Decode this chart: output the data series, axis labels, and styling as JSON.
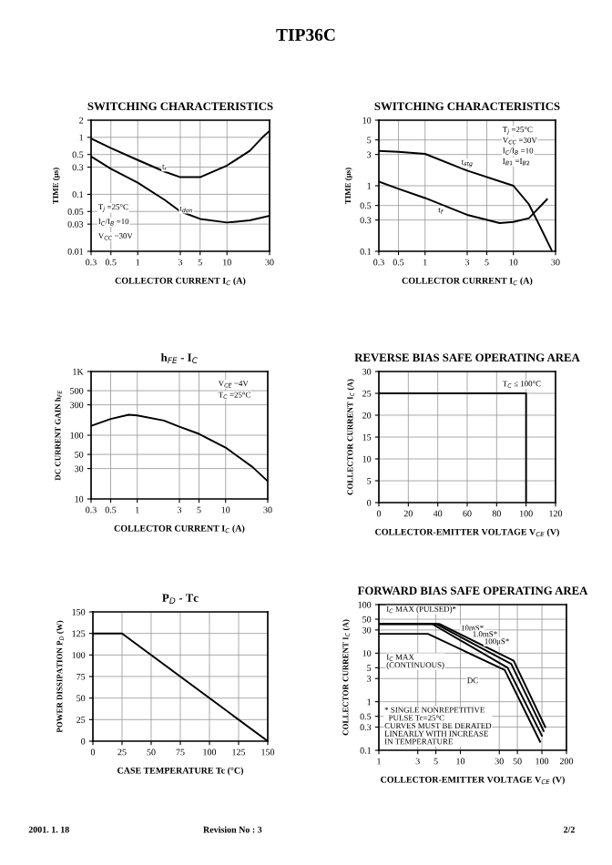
{
  "chart_data": [
    {
      "type": "other",
      "title": "TIP36C",
      "annotations": [
        "2001. 1. 18",
        "Revision No : 3",
        "2/2"
      ]
    },
    {
      "type": "line",
      "title": "SWITCHING CHARACTERISTICS",
      "xlabel": "COLLECTOR CURRENT I$_{C}$ (A)",
      "ylabel": "TIME (μs)",
      "log": "xy",
      "grid": true,
      "xlim": [
        0.3,
        30
      ],
      "ylim": [
        0.01,
        2
      ],
      "xticks": [
        0.3,
        0.5,
        1,
        3,
        5,
        10,
        30
      ],
      "yticks": [
        0.01,
        0.03,
        0.05,
        0.1,
        0.3,
        0.5,
        1,
        2
      ],
      "series": [
        {
          "color": "#000000",
          "x": [
            0.3,
            0.5,
            1,
            2,
            3,
            5,
            10,
            18,
            25,
            30
          ],
          "values": [
            0.95,
            0.65,
            0.4,
            0.25,
            0.2,
            0.2,
            0.32,
            0.58,
            1.0,
            1.3
          ]
        },
        {
          "color": "#000000",
          "x": [
            0.3,
            0.5,
            1,
            2,
            3,
            5,
            10,
            18,
            30
          ],
          "values": [
            0.46,
            0.28,
            0.16,
            0.08,
            0.05,
            0.037,
            0.032,
            0.035,
            0.042
          ]
        }
      ],
      "annotations": [
        {
          "text": "t$_{r}$",
          "x": 2,
          "y": 0.3
        },
        {
          "text": "t$_{don}$",
          "x": 3.5,
          "y": 0.055
        },
        "T$_{j}$ =25°C",
        "I$_{C}$/I$_{B}$ =10",
        "V$_{CC}$ =30V"
      ]
    },
    {
      "type": "line",
      "title": "SWITCHING CHARACTERISTICS",
      "xlabel": "COLLECTOR CURRENT I$_{C}$ (A)",
      "ylabel": "TIME (μs)",
      "log": "xy",
      "grid": true,
      "xlim": [
        0.3,
        30
      ],
      "ylim": [
        0.1,
        10
      ],
      "xticks": [
        0.3,
        0.5,
        1,
        3,
        5,
        10,
        30
      ],
      "yticks": [
        0.1,
        0.3,
        0.5,
        1,
        3,
        5,
        10
      ],
      "series": [
        {
          "color": "#000000",
          "x": [
            0.3,
            0.5,
            1,
            3,
            10,
            15,
            20,
            27
          ],
          "values": [
            3.4,
            3.3,
            3.06,
            1.7,
            1.0,
            0.52,
            0.24,
            0.105
          ]
        },
        {
          "color": "#000000",
          "x": [
            0.3,
            0.5,
            1,
            3,
            7,
            10,
            15,
            24
          ],
          "values": [
            1.16,
            0.9,
            0.65,
            0.36,
            0.27,
            0.28,
            0.32,
            0.62
          ]
        }
      ],
      "annotations": [
        {
          "text": "t$_{stg}$",
          "x": 3,
          "y": 2.2
        },
        {
          "text": "t$_{f}$",
          "x": 1.5,
          "y": 0.42
        },
        "T$_{j}$ =25°C",
        "V$_{CC}$ =30V",
        "I$_{C}$/I$_{B}$ =10",
        "I$_{B1}$ =I$_{B2}$"
      ]
    },
    {
      "type": "line",
      "title": "h$_{FE}$ - I$_{C}$",
      "xlabel": "COLLECTOR CURRENT I$_{C}$ (A)",
      "ylabel": "DC CURRENT GAIN h$_{FE}$",
      "log": "xy",
      "grid": true,
      "xlim": [
        0.3,
        30
      ],
      "ylim": [
        10,
        1000
      ],
      "xticks": [
        0.3,
        0.5,
        1,
        3,
        5,
        10,
        30
      ],
      "yticks": [
        10,
        30,
        50,
        100,
        {
          "value": 300,
          "label": "300"
        },
        {
          "value": 500,
          "label": "500"
        },
        {
          "value": 1000,
          "label": "1K"
        }
      ],
      "series": [
        {
          "color": "#000000",
          "x": [
            0.3,
            0.5,
            0.8,
            1,
            2,
            3,
            5,
            10,
            20,
            30
          ],
          "values": [
            140,
            180,
            210,
            205,
            170,
            136,
            105,
            64,
            32,
            19
          ]
        }
      ],
      "annotations": [
        "V$_{CE}$ =4V",
        "T$_{C}$ =25°C"
      ]
    },
    {
      "type": "line",
      "title": "REVERSE BIAS SAFE OPERATING AREA",
      "xlabel": "COLLECTOR-EMITTER VOLTAGE V$_{CE}$ (V)",
      "ylabel": "COLLECTOR CURRENT I$_{C}$ (A)",
      "grid": true,
      "xlim": [
        0,
        120
      ],
      "ylim": [
        0,
        30
      ],
      "xticks": [
        0,
        20,
        40,
        60,
        80,
        100,
        120
      ],
      "yticks": [
        0,
        5,
        10,
        15,
        20,
        25,
        30
      ],
      "series": [
        {
          "color": "#000000",
          "x": [
            0,
            100,
            100
          ],
          "values": [
            25,
            25,
            0
          ]
        }
      ],
      "annotations": [
        "T$_{C}$ ≤ 100°C"
      ]
    },
    {
      "type": "line",
      "title": "P$_{D}$ - Tc",
      "xlabel": "CASE TEMPERATURE Tc (°C)",
      "ylabel": "POWER DISSIPATION P$_{D}$ (W)",
      "grid": true,
      "xlim": [
        0,
        150
      ],
      "ylim": [
        0,
        150
      ],
      "xticks": [
        0,
        25,
        50,
        75,
        100,
        125,
        150
      ],
      "yticks": [
        0,
        25,
        50,
        75,
        100,
        125,
        150
      ],
      "series": [
        {
          "color": "#000000",
          "x": [
            0,
            25,
            150
          ],
          "values": [
            125,
            125,
            0
          ]
        }
      ]
    },
    {
      "type": "line",
      "title": "FORWARD BIAS SAFE OPERATING AREA",
      "xlabel": "COLLECTOR-EMITTER VOLTAGE V$_{CE}$ (V)",
      "ylabel": "COLLECTOR CURRENT I$_{C}$ (A)",
      "log": "xy",
      "grid": true,
      "xlim": [
        1,
        200
      ],
      "ylim": [
        0.1,
        100
      ],
      "xticks": [
        1,
        3,
        5,
        10,
        30,
        50,
        100,
        200
      ],
      "yticks": [
        0.1,
        0.3,
        0.5,
        1,
        3,
        5,
        10,
        30,
        50,
        100
      ],
      "series": [
        {
          "color": "#000000",
          "x": [
            1,
            5.5,
            45,
            110
          ],
          "values": [
            40,
            40,
            7,
            0.3
          ]
        },
        {
          "color": "#000000",
          "x": [
            1,
            5,
            42,
            105
          ],
          "values": [
            40,
            40,
            6,
            0.25
          ]
        },
        {
          "color": "#000000",
          "x": [
            1,
            4.5,
            38,
            100
          ],
          "values": [
            40,
            40,
            5,
            0.2
          ]
        },
        {
          "color": "#000000",
          "x": [
            1,
            4,
            35,
            95
          ],
          "values": [
            25,
            25,
            4.5,
            0.15
          ]
        }
      ],
      "annotations": [
        {
          "text": "10mS*",
          "x": 14,
          "y": 32
        },
        {
          "text": "1.0mS*",
          "x": 20,
          "y": 24
        },
        {
          "text": "100μS*",
          "x": 28,
          "y": 17
        },
        "DC",
        "I$_{C}$ MAX (PULSED)*",
        "I$_{C}$ MAX\n(CONTINUOUS)",
        "* SINGLE NONREPETITIVE\n  PULSE Tc=25°C\nCURVES MUST BE DERATED\nLINEARLY WITH INCREASE\nIN TEMPERATURE"
      ]
    }
  ]
}
